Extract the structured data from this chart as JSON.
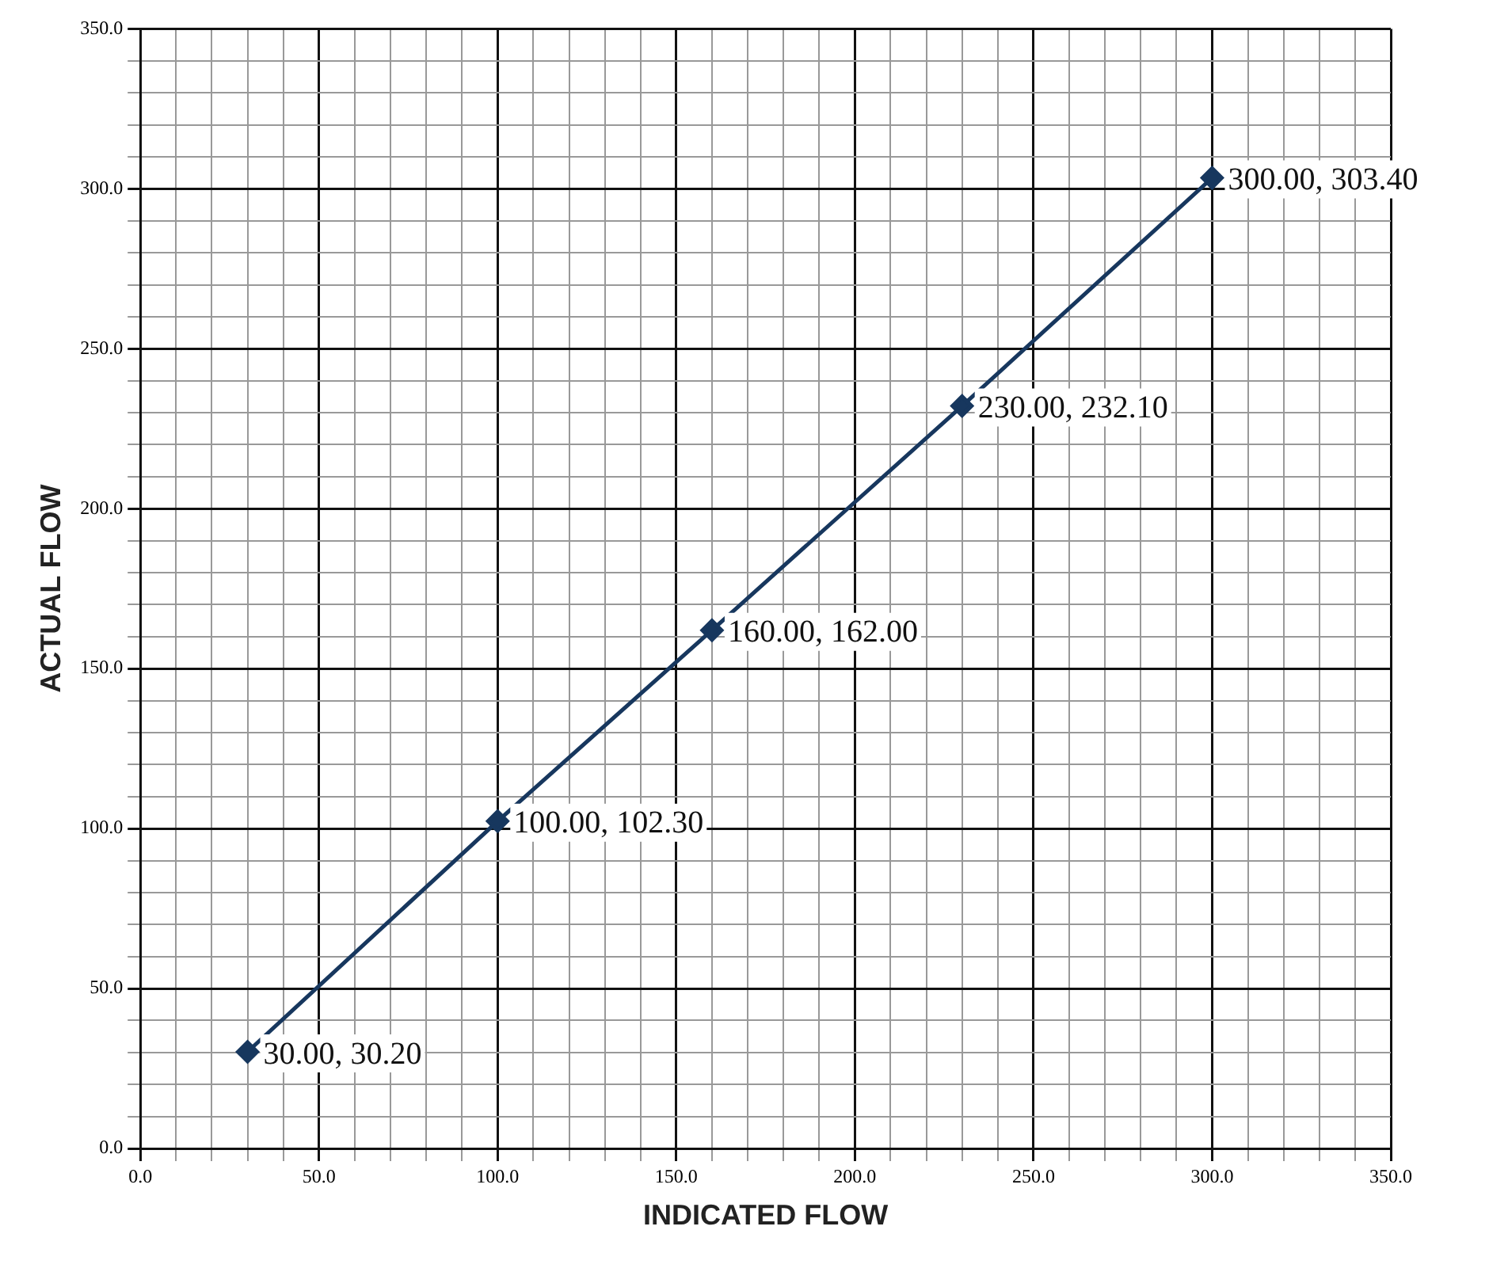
{
  "chart_data": {
    "type": "line",
    "xlabel": "INDICATED FLOW",
    "ylabel": "ACTUAL FLOW",
    "x": [
      30,
      100,
      160,
      230,
      300
    ],
    "series": [
      {
        "color": "#17375e",
        "values": [
          30.2,
          102.3,
          162,
          232.1,
          303.4
        ]
      }
    ],
    "marker": "diamond",
    "line_style": "solid",
    "grid": true,
    "legend": false,
    "xlim": [
      0,
      350
    ],
    "ylim": [
      0,
      350
    ],
    "xticks": [
      {
        "value": 0,
        "label": "0.0"
      },
      {
        "value": 10,
        "label": null
      },
      {
        "value": 20,
        "label": null
      },
      {
        "value": 30,
        "label": null
      },
      {
        "value": 40,
        "label": null
      },
      {
        "value": 50,
        "label": "50.0"
      },
      {
        "value": 60,
        "label": null
      },
      {
        "value": 70,
        "label": null
      },
      {
        "value": 80,
        "label": null
      },
      {
        "value": 90,
        "label": null
      },
      {
        "value": 100,
        "label": "100.0"
      },
      {
        "value": 110,
        "label": null
      },
      {
        "value": 120,
        "label": null
      },
      {
        "value": 130,
        "label": null
      },
      {
        "value": 140,
        "label": null
      },
      {
        "value": 150,
        "label": "150.0"
      },
      {
        "value": 160,
        "label": null
      },
      {
        "value": 170,
        "label": null
      },
      {
        "value": 180,
        "label": null
      },
      {
        "value": 190,
        "label": null
      },
      {
        "value": 200,
        "label": "200.0"
      },
      {
        "value": 210,
        "label": null
      },
      {
        "value": 220,
        "label": null
      },
      {
        "value": 230,
        "label": null
      },
      {
        "value": 240,
        "label": null
      },
      {
        "value": 250,
        "label": "250.0"
      },
      {
        "value": 260,
        "label": null
      },
      {
        "value": 270,
        "label": null
      },
      {
        "value": 280,
        "label": null
      },
      {
        "value": 290,
        "label": null
      },
      {
        "value": 300,
        "label": "300.0"
      },
      {
        "value": 310,
        "label": null
      },
      {
        "value": 320,
        "label": null
      },
      {
        "value": 330,
        "label": null
      },
      {
        "value": 340,
        "label": null
      },
      {
        "value": 350,
        "label": "350.0"
      }
    ],
    "yticks": [
      {
        "value": 0,
        "label": "0.0"
      },
      {
        "value": 10,
        "label": null
      },
      {
        "value": 20,
        "label": null
      },
      {
        "value": 30,
        "label": null
      },
      {
        "value": 40,
        "label": null
      },
      {
        "value": 50,
        "label": "50.0"
      },
      {
        "value": 60,
        "label": null
      },
      {
        "value": 70,
        "label": null
      },
      {
        "value": 80,
        "label": null
      },
      {
        "value": 90,
        "label": null
      },
      {
        "value": 100,
        "label": "100.0"
      },
      {
        "value": 110,
        "label": null
      },
      {
        "value": 120,
        "label": null
      },
      {
        "value": 130,
        "label": null
      },
      {
        "value": 140,
        "label": null
      },
      {
        "value": 150,
        "label": "150.0"
      },
      {
        "value": 160,
        "label": null
      },
      {
        "value": 170,
        "label": null
      },
      {
        "value": 180,
        "label": null
      },
      {
        "value": 190,
        "label": null
      },
      {
        "value": 200,
        "label": "200.0"
      },
      {
        "value": 210,
        "label": null
      },
      {
        "value": 220,
        "label": null
      },
      {
        "value": 230,
        "label": null
      },
      {
        "value": 240,
        "label": null
      },
      {
        "value": 250,
        "label": "250.0"
      },
      {
        "value": 260,
        "label": null
      },
      {
        "value": 270,
        "label": null
      },
      {
        "value": 280,
        "label": null
      },
      {
        "value": 290,
        "label": null
      },
      {
        "value": 300,
        "label": "300.0"
      },
      {
        "value": 310,
        "label": null
      },
      {
        "value": 320,
        "label": null
      },
      {
        "value": 330,
        "label": null
      },
      {
        "value": 340,
        "label": null
      },
      {
        "value": 350,
        "label": "350.0"
      }
    ],
    "annotations": [
      {
        "text": "30.00, 30.20",
        "x": 30,
        "y": 30.2
      },
      {
        "text": "100.00, 102.30",
        "x": 100,
        "y": 102.3
      },
      {
        "text": "160.00, 162.00",
        "x": 160,
        "y": 162
      },
      {
        "text": "230.00, 232.10",
        "x": 230,
        "y": 232.1
      },
      {
        "text": "300.00, 303.40",
        "x": 300,
        "y": 303.4
      }
    ]
  }
}
